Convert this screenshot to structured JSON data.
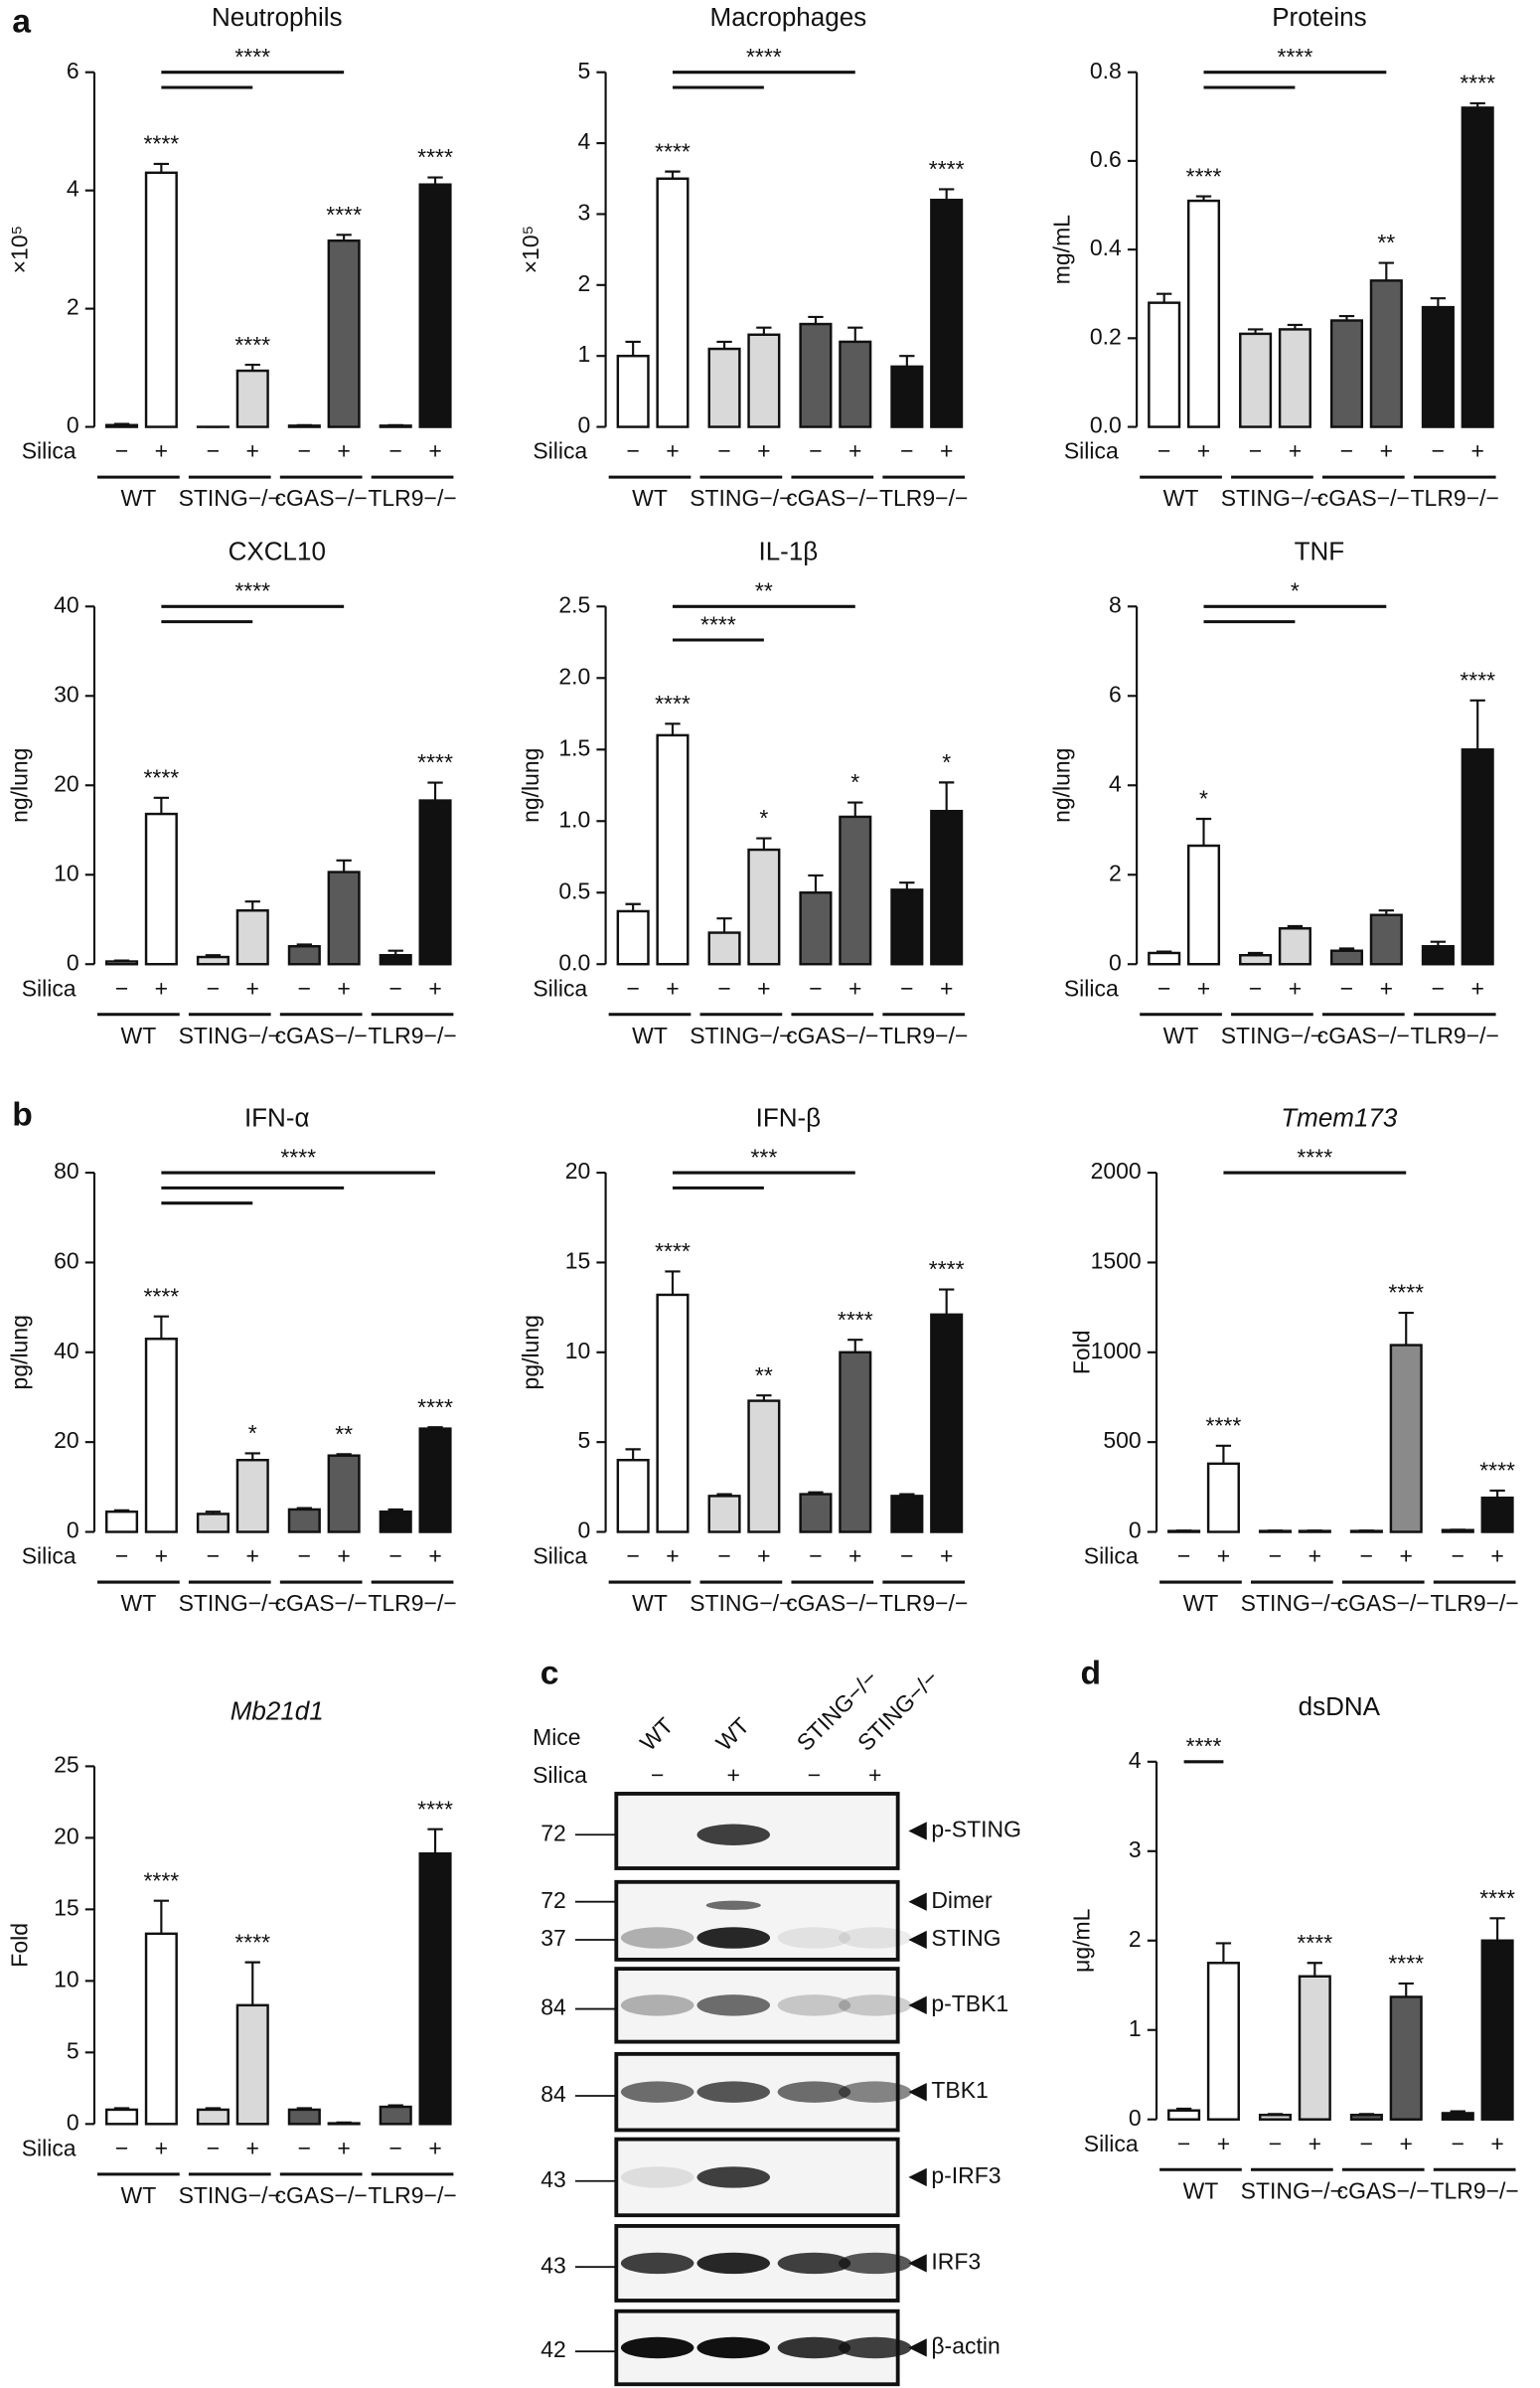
{
  "chart_data": [
    {
      "type": "bar",
      "panel": "a",
      "title": "Neutrophils",
      "ylabel": "×10⁵",
      "silica_label": "Silica",
      "categories": [
        "−",
        "+",
        "−",
        "+",
        "−",
        "+",
        "−",
        "+"
      ],
      "groups": [
        "WT",
        "STING−/−",
        "cGAS−/−",
        "TLR9−/−"
      ],
      "values": [
        0.03,
        4.3,
        0,
        0.95,
        0.02,
        3.15,
        0.02,
        4.1
      ],
      "errors": [
        0.02,
        0.15,
        0,
        0.1,
        0.01,
        0.1,
        0.01,
        0.12
      ],
      "colors": [
        "#ffffff",
        "#ffffff",
        "#d9d9d9",
        "#d9d9d9",
        "#5a5a5a",
        "#5a5a5a",
        "#111111",
        "#111111"
      ],
      "significance": [
        null,
        "****",
        null,
        "****",
        null,
        "****",
        null,
        "****"
      ],
      "brackets": [
        {
          "label": "****",
          "from": 1,
          "to": [
            3,
            5
          ]
        }
      ],
      "ylim": [
        0,
        6
      ],
      "yticks": [
        0,
        2,
        4,
        6
      ]
    },
    {
      "type": "bar",
      "title": "Macrophages",
      "ylabel": "×10⁵",
      "silica_label": "Silica",
      "categories": [
        "−",
        "+",
        "−",
        "+",
        "−",
        "+",
        "−",
        "+"
      ],
      "groups": [
        "WT",
        "STING−/−",
        "cGAS−/−",
        "TLR9−/−"
      ],
      "values": [
        1.0,
        3.5,
        1.1,
        1.3,
        1.45,
        1.2,
        0.85,
        3.2
      ],
      "errors": [
        0.2,
        0.1,
        0.1,
        0.1,
        0.1,
        0.2,
        0.15,
        0.15
      ],
      "colors": [
        "#ffffff",
        "#ffffff",
        "#d9d9d9",
        "#d9d9d9",
        "#5a5a5a",
        "#5a5a5a",
        "#111111",
        "#111111"
      ],
      "significance": [
        null,
        "****",
        null,
        null,
        null,
        null,
        null,
        "****"
      ],
      "brackets": [
        {
          "label": "****",
          "from": 1,
          "to": [
            3,
            5
          ]
        }
      ],
      "ylim": [
        0,
        5
      ],
      "yticks": [
        0,
        1,
        2,
        3,
        4,
        5
      ]
    },
    {
      "type": "bar",
      "title": "Proteins",
      "ylabel": "mg/mL",
      "silica_label": "Silica",
      "categories": [
        "−",
        "+",
        "−",
        "+",
        "−",
        "+",
        "−",
        "+"
      ],
      "groups": [
        "WT",
        "STING−/−",
        "cGAS−/−",
        "TLR9−/−"
      ],
      "values": [
        0.28,
        0.51,
        0.21,
        0.22,
        0.24,
        0.33,
        0.27,
        0.72
      ],
      "errors": [
        0.02,
        0.01,
        0.01,
        0.01,
        0.01,
        0.04,
        0.02,
        0.01
      ],
      "colors": [
        "#ffffff",
        "#ffffff",
        "#d9d9d9",
        "#d9d9d9",
        "#5a5a5a",
        "#5a5a5a",
        "#111111",
        "#111111"
      ],
      "significance": [
        null,
        "****",
        null,
        null,
        null,
        "**",
        null,
        "****"
      ],
      "brackets": [
        {
          "label": "****",
          "from": 1,
          "to": [
            3,
            5
          ]
        }
      ],
      "ylim": [
        0,
        0.8
      ],
      "yticks": [
        {
          "value": 0,
          "label": "0.0"
        },
        0.2,
        0.4,
        0.6,
        0.8
      ]
    },
    {
      "type": "bar",
      "title": "CXCL10",
      "ylabel": "ng/lung",
      "silica_label": "Silica",
      "categories": [
        "−",
        "+",
        "−",
        "+",
        "−",
        "+",
        "−",
        "+"
      ],
      "groups": [
        "WT",
        "STING−/−",
        "cGAS−/−",
        "TLR9−/−"
      ],
      "values": [
        0.3,
        16.8,
        0.8,
        6,
        2,
        10.3,
        1,
        18.3
      ],
      "errors": [
        0.1,
        1.8,
        0.2,
        1,
        0.2,
        1.3,
        0.5,
        2
      ],
      "colors": [
        "#ffffff",
        "#ffffff",
        "#d9d9d9",
        "#d9d9d9",
        "#5a5a5a",
        "#5a5a5a",
        "#111111",
        "#111111"
      ],
      "significance": [
        null,
        "****",
        null,
        null,
        null,
        null,
        null,
        "****"
      ],
      "brackets": [
        {
          "label": "****",
          "from": 1,
          "to": [
            3,
            5
          ]
        }
      ],
      "ylim": [
        0,
        40
      ],
      "yticks": [
        0,
        10,
        20,
        30,
        40
      ]
    },
    {
      "type": "bar",
      "title": "IL-1β",
      "ylabel": "ng/lung",
      "silica_label": "Silica",
      "categories": [
        "−",
        "+",
        "−",
        "+",
        "−",
        "+",
        "−",
        "+"
      ],
      "groups": [
        "WT",
        "STING−/−",
        "cGAS−/−",
        "TLR9−/−"
      ],
      "values": [
        0.37,
        1.6,
        0.22,
        0.8,
        0.5,
        1.03,
        0.52,
        1.07
      ],
      "errors": [
        0.05,
        0.08,
        0.1,
        0.08,
        0.12,
        0.1,
        0.05,
        0.2
      ],
      "colors": [
        "#ffffff",
        "#ffffff",
        "#d9d9d9",
        "#d9d9d9",
        "#5a5a5a",
        "#5a5a5a",
        "#111111",
        "#111111"
      ],
      "significance": [
        null,
        "****",
        null,
        "*",
        null,
        "*",
        null,
        "*"
      ],
      "brackets": [
        {
          "label": "****",
          "from": 1,
          "to": [
            3
          ]
        },
        {
          "label": "**",
          "from": 1,
          "to": [
            5
          ]
        }
      ],
      "ylim": [
        0,
        2.5
      ],
      "yticks": [
        {
          "value": 0,
          "label": "0.0"
        },
        0.5,
        {
          "value": 1,
          "label": "1.0"
        },
        1.5,
        {
          "value": 2,
          "label": "2.0"
        },
        2.5
      ]
    },
    {
      "type": "bar",
      "title": "TNF",
      "ylabel": "ng/lung",
      "silica_label": "Silica",
      "categories": [
        "−",
        "+",
        "−",
        "+",
        "−",
        "+",
        "−",
        "+"
      ],
      "groups": [
        "WT",
        "STING−/−",
        "cGAS−/−",
        "TLR9−/−"
      ],
      "values": [
        0.25,
        2.65,
        0.2,
        0.8,
        0.3,
        1.1,
        0.4,
        4.8
      ],
      "errors": [
        0.03,
        0.6,
        0.05,
        0.05,
        0.05,
        0.1,
        0.1,
        1.1
      ],
      "colors": [
        "#ffffff",
        "#ffffff",
        "#d9d9d9",
        "#d9d9d9",
        "#5a5a5a",
        "#5a5a5a",
        "#111111",
        "#111111"
      ],
      "significance": [
        null,
        "*",
        null,
        null,
        null,
        null,
        null,
        "****"
      ],
      "brackets": [
        {
          "label": "*",
          "from": 1,
          "to": [
            3,
            5
          ]
        }
      ],
      "ylim": [
        0,
        8
      ],
      "yticks": [
        0,
        2,
        4,
        6,
        8
      ]
    },
    {
      "type": "bar",
      "panel": "b",
      "title": "IFN-α",
      "ylabel": "pg/lung",
      "silica_label": "Silica",
      "categories": [
        "−",
        "+",
        "−",
        "+",
        "−",
        "+",
        "−",
        "+"
      ],
      "groups": [
        "WT",
        "STING−/−",
        "cGAS−/−",
        "TLR9−/−"
      ],
      "values": [
        4.5,
        43,
        4,
        16,
        5,
        17,
        4.5,
        23
      ],
      "errors": [
        0.3,
        5,
        0.5,
        1.5,
        0.3,
        0.3,
        0.5,
        0.3
      ],
      "colors": [
        "#ffffff",
        "#ffffff",
        "#d9d9d9",
        "#d9d9d9",
        "#5a5a5a",
        "#5a5a5a",
        "#111111",
        "#111111"
      ],
      "significance": [
        null,
        "****",
        null,
        "*",
        null,
        "**",
        null,
        "****"
      ],
      "brackets": [
        {
          "label": "****",
          "from": 1,
          "to": [
            3,
            5,
            7
          ]
        }
      ],
      "ylim": [
        0,
        80
      ],
      "yticks": [
        0,
        20,
        40,
        60,
        80
      ]
    },
    {
      "type": "bar",
      "title": "IFN-β",
      "ylabel": "pg/lung",
      "silica_label": "Silica",
      "categories": [
        "−",
        "+",
        "−",
        "+",
        "−",
        "+",
        "−",
        "+"
      ],
      "groups": [
        "WT",
        "STING−/−",
        "cGAS−/−",
        "TLR9−/−"
      ],
      "values": [
        4,
        13.2,
        2,
        7.3,
        2.1,
        10,
        2,
        12.1
      ],
      "errors": [
        0.6,
        1.3,
        0.1,
        0.3,
        0.1,
        0.7,
        0.1,
        1.4
      ],
      "colors": [
        "#ffffff",
        "#ffffff",
        "#d9d9d9",
        "#d9d9d9",
        "#5a5a5a",
        "#5a5a5a",
        "#111111",
        "#111111"
      ],
      "significance": [
        null,
        "****",
        null,
        "**",
        null,
        "****",
        null,
        "****"
      ],
      "brackets": [
        {
          "label": "***",
          "from": 1,
          "to": [
            3,
            5
          ]
        }
      ],
      "ylim": [
        0,
        20
      ],
      "yticks": [
        0,
        5,
        10,
        15,
        20
      ]
    },
    {
      "type": "bar",
      "title": "Tmem173",
      "title_style": "italic",
      "ylabel": "Fold",
      "silica_label": "Silica",
      "categories": [
        "−",
        "+",
        "−",
        "+",
        "−",
        "+",
        "−",
        "+"
      ],
      "groups": [
        "WT",
        "STING−/−",
        "cGAS−/−",
        "TLR9−/−"
      ],
      "values": [
        5,
        380,
        5,
        5,
        5,
        1040,
        10,
        190
      ],
      "errors": [
        2,
        100,
        2,
        2,
        2,
        180,
        2,
        40
      ],
      "colors": [
        "#ffffff",
        "#ffffff",
        "#d9d9d9",
        "#d9d9d9",
        "#8a8a8a",
        "#8a8a8a",
        "#5a5a5a",
        "#111111"
      ],
      "significance": [
        null,
        "****",
        null,
        null,
        null,
        "****",
        null,
        "****"
      ],
      "brackets": [
        {
          "label": "****",
          "from": 1,
          "to": [
            5
          ]
        }
      ],
      "ylim": [
        0,
        2000
      ],
      "yticks": [
        0,
        500,
        1000,
        1500,
        2000
      ]
    },
    {
      "type": "bar",
      "title": "Mb21d1",
      "title_style": "italic",
      "ylabel": "Fold",
      "silica_label": "Silica",
      "categories": [
        "−",
        "+",
        "−",
        "+",
        "−",
        "+",
        "−",
        "+"
      ],
      "groups": [
        "WT",
        "STING−/−",
        "cGAS−/−",
        "TLR9−/−"
      ],
      "values": [
        1,
        13.3,
        1,
        8.3,
        1,
        0.05,
        1.2,
        18.9
      ],
      "errors": [
        0.1,
        2.3,
        0.1,
        3,
        0.1,
        0.05,
        0.1,
        1.7
      ],
      "colors": [
        "#ffffff",
        "#ffffff",
        "#d9d9d9",
        "#d9d9d9",
        "#5a5a5a",
        "#5a5a5a",
        "#5a5a5a",
        "#111111"
      ],
      "significance": [
        null,
        "****",
        null,
        "****",
        null,
        null,
        null,
        "****"
      ],
      "brackets": [],
      "ylim": [
        0,
        25
      ],
      "yticks": [
        0,
        5,
        10,
        15,
        20,
        25
      ]
    },
    {
      "type": "bar",
      "panel": "d",
      "title": "dsDNA",
      "ylabel": "μg/mL",
      "silica_label": "Silica",
      "categories": [
        "−",
        "+",
        "−",
        "+",
        "−",
        "+",
        "−",
        "+"
      ],
      "groups": [
        "WT",
        "STING−/−",
        "cGAS−/−",
        "TLR9−/−"
      ],
      "values": [
        0.1,
        1.75,
        0.05,
        1.6,
        0.05,
        1.37,
        0.07,
        2
      ],
      "errors": [
        0.02,
        0.22,
        0.01,
        0.15,
        0.01,
        0.15,
        0.02,
        0.25
      ],
      "colors": [
        "#ffffff",
        "#ffffff",
        "#d9d9d9",
        "#d9d9d9",
        "#5a5a5a",
        "#5a5a5a",
        "#111111",
        "#111111"
      ],
      "significance": [
        null,
        null,
        null,
        "****",
        null,
        "****",
        null,
        "****"
      ],
      "brackets": [
        {
          "label": "****",
          "from": 0,
          "to": [
            1
          ]
        }
      ],
      "ylim": [
        0,
        4
      ],
      "yticks": [
        0,
        1,
        2,
        3,
        4
      ]
    }
  ],
  "blot": {
    "panel": "c",
    "mice_label": "Mice",
    "silica_label": "Silica",
    "lanes": [
      {
        "mouse": "WT",
        "silica": "−"
      },
      {
        "mouse": "WT",
        "silica": "+"
      },
      {
        "mouse": "STING−/−",
        "silica": "−"
      },
      {
        "mouse": "STING−/−",
        "silica": "+"
      }
    ],
    "rows": [
      {
        "markers": [
          "72"
        ],
        "labels": [
          "p-STING"
        ]
      },
      {
        "markers": [
          "72",
          "37"
        ],
        "labels": [
          "Dimer",
          "STING"
        ]
      },
      {
        "markers": [
          "84"
        ],
        "labels": [
          "p-TBK1"
        ]
      },
      {
        "markers": [
          "84"
        ],
        "labels": [
          "TBK1"
        ]
      },
      {
        "markers": [
          "43"
        ],
        "labels": [
          "p-IRF3"
        ]
      },
      {
        "markers": [
          "43"
        ],
        "labels": [
          "IRF3"
        ]
      },
      {
        "markers": [
          "42"
        ],
        "labels": [
          "β-actin"
        ]
      }
    ]
  }
}
